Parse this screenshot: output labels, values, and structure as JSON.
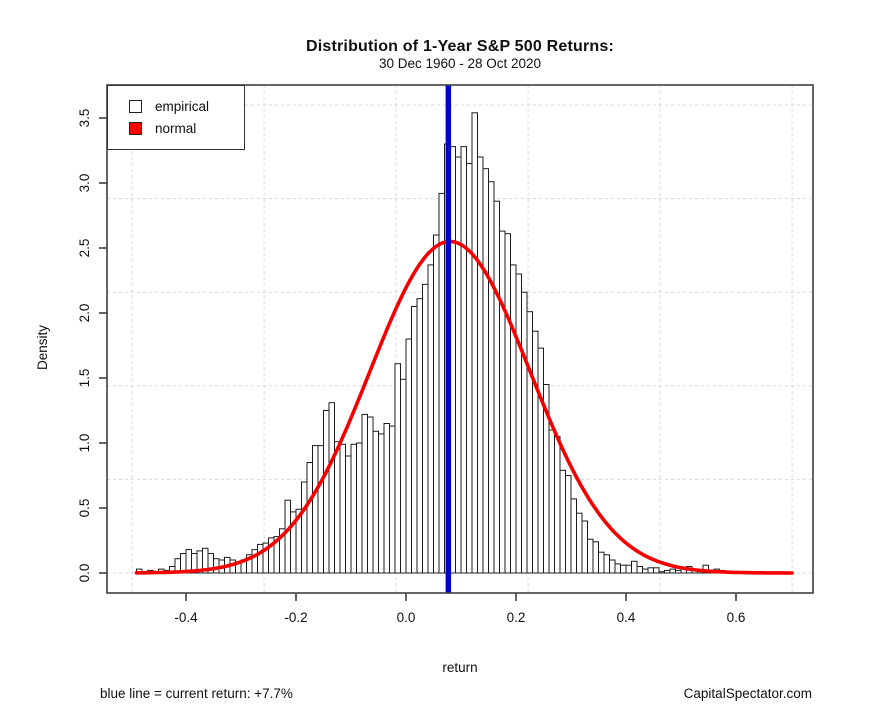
{
  "header": {
    "title": "Distribution of 1-Year S&P 500 Returns:",
    "subtitle": "30 Dec 1960 - 28 Oct 2020"
  },
  "axes": {
    "x_label": "return",
    "y_label": "Density"
  },
  "footer": {
    "note": "blue line = current return: +7.7%",
    "credit": "CapitalSpectator.com"
  },
  "colors": {
    "histogram_fill": "#ffffff",
    "histogram_stroke": "#1c1c1c",
    "normal_curve": "#f50000",
    "current_return_line": "#0000d0",
    "grid": "#d8d8d8",
    "axis": "#404040"
  },
  "chart_data": {
    "type": "histogram",
    "title": "Distribution of 1-Year S&P 500 Returns:",
    "subtitle": "30 Dec 1960 - 28 Oct 2020",
    "xlabel": "return",
    "ylabel": "Density",
    "xlim": [
      -0.544,
      0.74
    ],
    "ylim": [
      -0.154,
      3.754
    ],
    "grid_on": true,
    "x_ticks": [
      -0.4,
      -0.2,
      0.0,
      0.2,
      0.4,
      0.6
    ],
    "x_tick_labels": [
      "-0.4",
      "-0.2",
      "0.0",
      "0.2",
      "0.4",
      "0.6"
    ],
    "y_ticks": [
      0.0,
      0.5,
      1.0,
      1.5,
      2.0,
      2.5,
      3.0,
      3.5
    ],
    "y_tick_labels": [
      "0.0",
      "0.5",
      "1.0",
      "1.5",
      "2.0",
      "2.5",
      "3.0",
      "3.5"
    ],
    "legend": [
      {
        "label": "empirical",
        "swatch": "#ffffff"
      },
      {
        "label": "normal",
        "swatch": "#ff0000"
      }
    ],
    "legend_position": "top-left",
    "bins": {
      "start": -0.49,
      "width": 0.01,
      "densities": [
        0.03,
        0.0,
        0.02,
        0.0,
        0.03,
        0.02,
        0.05,
        0.11,
        0.15,
        0.18,
        0.15,
        0.17,
        0.19,
        0.15,
        0.11,
        0.1,
        0.12,
        0.1,
        0.08,
        0.1,
        0.14,
        0.18,
        0.22,
        0.23,
        0.27,
        0.28,
        0.34,
        0.56,
        0.47,
        0.49,
        0.7,
        0.85,
        0.98,
        0.98,
        1.25,
        1.31,
        1.01,
        0.99,
        0.9,
        0.99,
        1.0,
        1.22,
        1.2,
        1.09,
        1.07,
        1.15,
        1.13,
        1.61,
        1.49,
        1.8,
        2.05,
        2.11,
        2.22,
        2.37,
        2.6,
        2.92,
        3.3,
        3.28,
        3.2,
        3.28,
        3.15,
        3.54,
        3.2,
        3.11,
        3.01,
        2.86,
        2.63,
        2.61,
        2.37,
        2.3,
        2.16,
        2.01,
        1.86,
        1.73,
        1.45,
        1.1,
        1.05,
        0.79,
        0.75,
        0.57,
        0.46,
        0.4,
        0.26,
        0.24,
        0.16,
        0.14,
        0.1,
        0.07,
        0.06,
        0.06,
        0.09,
        0.05,
        0.03,
        0.04,
        0.04,
        0.01,
        0.02,
        0.03,
        0.02,
        0.03,
        0.05,
        0.03,
        0.02,
        0.06,
        0.02,
        0.03,
        0.02
      ]
    },
    "normal_overlay": {
      "mean": 0.08,
      "sd": 0.146,
      "peak_density": 2.55,
      "x_range": [
        -0.49,
        0.702
      ]
    },
    "current_return_line": {
      "x": 0.077,
      "label": "+7.7%"
    },
    "grid_lines": {
      "x": [
        -0.498,
        -0.258,
        -0.018,
        0.222,
        0.462,
        0.702
      ],
      "y": [
        0.0,
        0.72,
        1.44,
        2.16,
        2.88,
        3.6
      ]
    }
  }
}
